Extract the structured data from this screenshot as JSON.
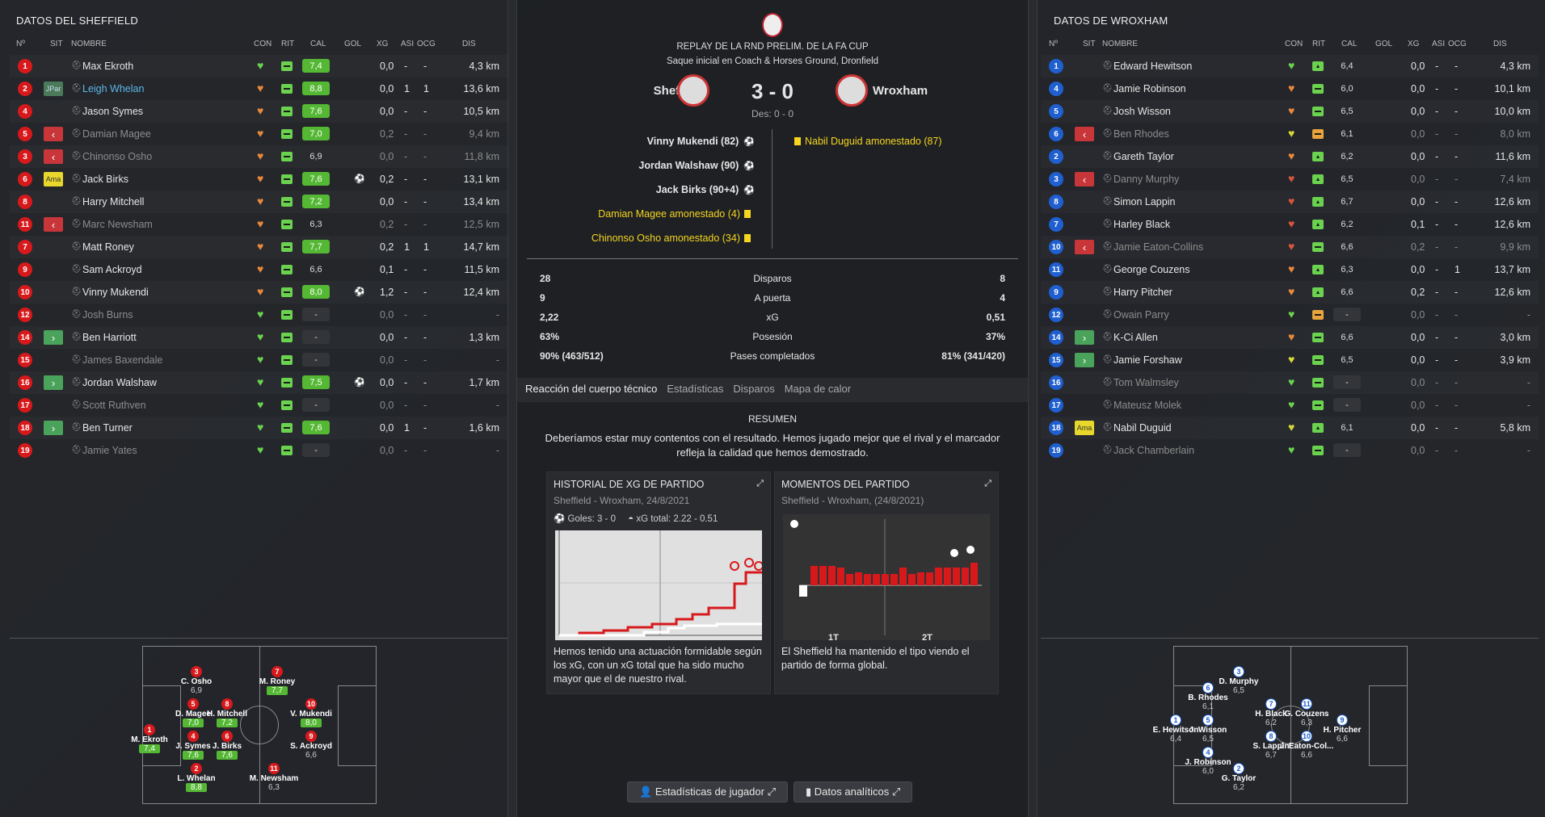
{
  "left": {
    "title": "DATOS DEL SHEFFIELD",
    "headers": {
      "num": "Nº",
      "sit": "SIT",
      "nombre": "NOMBRE",
      "con": "CON",
      "rit": "RIT",
      "cal": "CAL",
      "gol": "GOL",
      "xg": "XG",
      "asi": "ASI",
      "ocg": "OCG",
      "dis": "DIS"
    },
    "players": [
      {
        "num": "1",
        "sit": "",
        "name": "Max Ekroth",
        "con": "green",
        "rit": "g",
        "cal": "7,4",
        "calc": "good",
        "gol": "",
        "xg": "0,0",
        "asi": "-",
        "ocg": "-",
        "dis": "4,3 km",
        "style": ""
      },
      {
        "num": "2",
        "sit": "JPar",
        "name": "Leigh Whelan",
        "con": "orange",
        "rit": "g",
        "cal": "8,8",
        "calc": "good",
        "gol": "",
        "xg": "0,0",
        "asi": "1",
        "ocg": "1",
        "dis": "13,6 km",
        "style": "hl"
      },
      {
        "num": "4",
        "sit": "",
        "name": "Jason Symes",
        "con": "orange",
        "rit": "g",
        "cal": "7,6",
        "calc": "good",
        "gol": "",
        "xg": "0,0",
        "asi": "-",
        "ocg": "-",
        "dis": "10,5 km",
        "style": ""
      },
      {
        "num": "5",
        "sit": "out",
        "name": "Damian Magee",
        "con": "orange",
        "rit": "g",
        "cal": "7,0",
        "calc": "good",
        "gol": "",
        "xg": "0,2",
        "asi": "-",
        "ocg": "-",
        "dis": "9,4 km",
        "style": "dim"
      },
      {
        "num": "3",
        "sit": "out",
        "name": "Chinonso Osho",
        "con": "orange",
        "rit": "g",
        "cal": "6,9",
        "calc": "plain",
        "gol": "",
        "xg": "0,0",
        "asi": "-",
        "ocg": "-",
        "dis": "11,8 km",
        "style": "dim"
      },
      {
        "num": "6",
        "sit": "Ama",
        "name": "Jack Birks",
        "con": "orange",
        "rit": "g",
        "cal": "7,6",
        "calc": "good",
        "gol": "⚽",
        "xg": "0,2",
        "asi": "-",
        "ocg": "-",
        "dis": "13,1 km",
        "style": ""
      },
      {
        "num": "8",
        "sit": "",
        "name": "Harry Mitchell",
        "con": "orange",
        "rit": "g",
        "cal": "7,2",
        "calc": "good",
        "gol": "",
        "xg": "0,0",
        "asi": "-",
        "ocg": "-",
        "dis": "13,4 km",
        "style": ""
      },
      {
        "num": "11",
        "sit": "out",
        "name": "Marc Newsham",
        "con": "orange",
        "rit": "g",
        "cal": "6,3",
        "calc": "plain",
        "gol": "",
        "xg": "0,2",
        "asi": "-",
        "ocg": "-",
        "dis": "12,5 km",
        "style": "dim"
      },
      {
        "num": "7",
        "sit": "",
        "name": "Matt Roney",
        "con": "orange",
        "rit": "g",
        "cal": "7,7",
        "calc": "good",
        "gol": "",
        "xg": "0,2",
        "asi": "1",
        "ocg": "1",
        "dis": "14,7 km",
        "style": ""
      },
      {
        "num": "9",
        "sit": "",
        "name": "Sam Ackroyd",
        "con": "orange",
        "rit": "g",
        "cal": "6,6",
        "calc": "plain",
        "gol": "",
        "xg": "0,1",
        "asi": "-",
        "ocg": "-",
        "dis": "11,5 km",
        "style": ""
      },
      {
        "num": "10",
        "sit": "",
        "name": "Vinny Mukendi",
        "con": "orange",
        "rit": "g",
        "cal": "8,0",
        "calc": "good",
        "gol": "⚽",
        "xg": "1,2",
        "asi": "-",
        "ocg": "-",
        "dis": "12,4 km",
        "style": ""
      },
      {
        "num": "12",
        "sit": "",
        "name": "Josh Burns",
        "con": "green",
        "rit": "g",
        "cal": "-",
        "calc": "dash",
        "gol": "",
        "xg": "0,0",
        "asi": "-",
        "ocg": "-",
        "dis": "-",
        "style": "dim"
      },
      {
        "num": "14",
        "sit": "in",
        "name": "Ben Harriott",
        "con": "green",
        "rit": "g",
        "cal": "-",
        "calc": "dash",
        "gol": "",
        "xg": "0,0",
        "asi": "-",
        "ocg": "-",
        "dis": "1,3 km",
        "style": ""
      },
      {
        "num": "15",
        "sit": "",
        "name": "James Baxendale",
        "con": "green",
        "rit": "g",
        "cal": "-",
        "calc": "dash",
        "gol": "",
        "xg": "0,0",
        "asi": "-",
        "ocg": "-",
        "dis": "-",
        "style": "dim"
      },
      {
        "num": "16",
        "sit": "in",
        "name": "Jordan Walshaw",
        "con": "green",
        "rit": "g",
        "cal": "7,5",
        "calc": "good",
        "gol": "⚽",
        "xg": "0,0",
        "asi": "-",
        "ocg": "-",
        "dis": "1,7 km",
        "style": ""
      },
      {
        "num": "17",
        "sit": "",
        "name": "Scott Ruthven",
        "con": "green",
        "rit": "g",
        "cal": "-",
        "calc": "dash",
        "gol": "",
        "xg": "0,0",
        "asi": "-",
        "ocg": "-",
        "dis": "-",
        "style": "dim"
      },
      {
        "num": "18",
        "sit": "in",
        "name": "Ben Turner",
        "con": "green",
        "rit": "g",
        "cal": "7,6",
        "calc": "good",
        "gol": "",
        "xg": "0,0",
        "asi": "1",
        "ocg": "-",
        "dis": "1,6 km",
        "style": ""
      },
      {
        "num": "19",
        "sit": "",
        "name": "Jamie Yates",
        "con": "green",
        "rit": "g",
        "cal": "-",
        "calc": "dash",
        "gol": "",
        "xg": "0,0",
        "asi": "-",
        "ocg": "-",
        "dis": "-",
        "style": "dim"
      }
    ],
    "pitch": [
      {
        "n": "1",
        "name": "M. Ekroth",
        "r": "7,4",
        "g": true
      },
      {
        "n": "3",
        "name": "C. Osho",
        "r": "6,9",
        "g": false
      },
      {
        "n": "5",
        "name": "D. Magee",
        "r": "7,0",
        "g": true
      },
      {
        "n": "4",
        "name": "J. Symes",
        "r": "7,6",
        "g": true
      },
      {
        "n": "2",
        "name": "L. Whelan",
        "r": "8,8",
        "g": true
      },
      {
        "n": "8",
        "name": "H. Mitchell",
        "r": "7,2",
        "g": true
      },
      {
        "n": "6",
        "name": "J. Birks",
        "r": "7,6",
        "g": true
      },
      {
        "n": "7",
        "name": "M. Roney",
        "r": "7,7",
        "g": true
      },
      {
        "n": "11",
        "name": "M. Newsham",
        "r": "6,3",
        "g": false
      },
      {
        "n": "10",
        "name": "V. Mukendi",
        "r": "8,0",
        "g": true
      },
      {
        "n": "9",
        "name": "S. Ackroyd",
        "r": "6,6",
        "g": false
      }
    ]
  },
  "right": {
    "title": "DATOS DE WROXHAM",
    "headers": {
      "num": "Nº",
      "sit": "SIT",
      "nombre": "NOMBRE",
      "con": "CON",
      "rit": "RIT",
      "cal": "CAL",
      "gol": "GOL",
      "xg": "XG",
      "asi": "ASI",
      "ocg": "OCG",
      "dis": "DIS"
    },
    "players": [
      {
        "num": "1",
        "sit": "",
        "name": "Edward Hewitson",
        "con": "green",
        "rit": "up",
        "cal": "6,4",
        "calc": "plain",
        "gol": "",
        "xg": "0,0",
        "asi": "-",
        "ocg": "-",
        "dis": "4,3 km",
        "style": ""
      },
      {
        "num": "4",
        "sit": "",
        "name": "Jamie Robinson",
        "con": "orange",
        "rit": "g",
        "cal": "6,0",
        "calc": "plain",
        "gol": "",
        "xg": "0,0",
        "asi": "-",
        "ocg": "-",
        "dis": "10,1 km",
        "style": ""
      },
      {
        "num": "5",
        "sit": "",
        "name": "Josh Wisson",
        "con": "orange",
        "rit": "g",
        "cal": "6,5",
        "calc": "plain",
        "gol": "",
        "xg": "0,0",
        "asi": "-",
        "ocg": "-",
        "dis": "10,0 km",
        "style": ""
      },
      {
        "num": "6",
        "sit": "out",
        "name": "Ben Rhodes",
        "con": "yellow",
        "rit": "or",
        "cal": "6,1",
        "calc": "plain",
        "gol": "",
        "xg": "0,0",
        "asi": "-",
        "ocg": "-",
        "dis": "8,0 km",
        "style": "dim"
      },
      {
        "num": "2",
        "sit": "",
        "name": "Gareth Taylor",
        "con": "orange",
        "rit": "up",
        "cal": "6,2",
        "calc": "plain",
        "gol": "",
        "xg": "0,0",
        "asi": "-",
        "ocg": "-",
        "dis": "11,6 km",
        "style": ""
      },
      {
        "num": "3",
        "sit": "out",
        "name": "Danny Murphy",
        "con": "red",
        "rit": "up",
        "cal": "6,5",
        "calc": "plain",
        "gol": "",
        "xg": "0,0",
        "asi": "-",
        "ocg": "-",
        "dis": "7,4 km",
        "style": "dim"
      },
      {
        "num": "8",
        "sit": "",
        "name": "Simon Lappin",
        "con": "red",
        "rit": "up",
        "cal": "6,7",
        "calc": "plain",
        "gol": "",
        "xg": "0,0",
        "asi": "-",
        "ocg": "-",
        "dis": "12,6 km",
        "style": ""
      },
      {
        "num": "7",
        "sit": "",
        "name": "Harley Black",
        "con": "red",
        "rit": "up",
        "cal": "6,2",
        "calc": "plain",
        "gol": "",
        "xg": "0,1",
        "asi": "-",
        "ocg": "-",
        "dis": "12,6 km",
        "style": ""
      },
      {
        "num": "10",
        "sit": "out",
        "name": "Jamie Eaton-Collins",
        "con": "red",
        "rit": "g",
        "cal": "6,6",
        "calc": "plain",
        "gol": "",
        "xg": "0,2",
        "asi": "-",
        "ocg": "-",
        "dis": "9,9 km",
        "style": "dim"
      },
      {
        "num": "11",
        "sit": "",
        "name": "George Couzens",
        "con": "orange",
        "rit": "up",
        "cal": "6,3",
        "calc": "plain",
        "gol": "",
        "xg": "0,0",
        "asi": "-",
        "ocg": "1",
        "dis": "13,7 km",
        "style": ""
      },
      {
        "num": "9",
        "sit": "",
        "name": "Harry Pitcher",
        "con": "orange",
        "rit": "up",
        "cal": "6,6",
        "calc": "plain",
        "gol": "",
        "xg": "0,2",
        "asi": "-",
        "ocg": "-",
        "dis": "12,6 km",
        "style": ""
      },
      {
        "num": "12",
        "sit": "",
        "name": "Owain Parry",
        "con": "green",
        "rit": "or",
        "cal": "-",
        "calc": "dash",
        "gol": "",
        "xg": "0,0",
        "asi": "-",
        "ocg": "-",
        "dis": "-",
        "style": "dim"
      },
      {
        "num": "14",
        "sit": "in",
        "name": "K-Ci Allen",
        "con": "orange",
        "rit": "g",
        "cal": "6,6",
        "calc": "plain",
        "gol": "",
        "xg": "0,0",
        "asi": "-",
        "ocg": "-",
        "dis": "3,0 km",
        "style": ""
      },
      {
        "num": "15",
        "sit": "in",
        "name": "Jamie Forshaw",
        "con": "yellow",
        "rit": "g",
        "cal": "6,5",
        "calc": "plain",
        "gol": "",
        "xg": "0,0",
        "asi": "-",
        "ocg": "-",
        "dis": "3,9 km",
        "style": ""
      },
      {
        "num": "16",
        "sit": "",
        "name": "Tom Walmsley",
        "con": "green",
        "rit": "g",
        "cal": "-",
        "calc": "dash",
        "gol": "",
        "xg": "0,0",
        "asi": "-",
        "ocg": "-",
        "dis": "-",
        "style": "dim"
      },
      {
        "num": "17",
        "sit": "",
        "name": "Mateusz Molek",
        "con": "green",
        "rit": "g",
        "cal": "-",
        "calc": "dash",
        "gol": "",
        "xg": "0,0",
        "asi": "-",
        "ocg": "-",
        "dis": "-",
        "style": "dim"
      },
      {
        "num": "18",
        "sit": "Ama",
        "name": "Nabil Duguid",
        "con": "yellow",
        "rit": "up",
        "cal": "6,1",
        "calc": "plain",
        "gol": "",
        "xg": "0,0",
        "asi": "-",
        "ocg": "-",
        "dis": "5,8 km",
        "style": ""
      },
      {
        "num": "19",
        "sit": "",
        "name": "Jack Chamberlain",
        "con": "green",
        "rit": "g",
        "cal": "-",
        "calc": "dash",
        "gol": "",
        "xg": "0,0",
        "asi": "-",
        "ocg": "-",
        "dis": "-",
        "style": "dim"
      }
    ],
    "pitch": [
      {
        "n": "1",
        "name": "E. Hewitson",
        "r": "6,4"
      },
      {
        "n": "6",
        "name": "B. Rhodes",
        "r": "6,1"
      },
      {
        "n": "5",
        "name": "J. Wisson",
        "r": "6,5"
      },
      {
        "n": "4",
        "name": "J. Robinson",
        "r": "6,0"
      },
      {
        "n": "3",
        "name": "D. Murphy",
        "r": "6,5"
      },
      {
        "n": "2",
        "name": "G. Taylor",
        "r": "6,2"
      },
      {
        "n": "7",
        "name": "H. Black",
        "r": "6,2"
      },
      {
        "n": "8",
        "name": "S. Lappin",
        "r": "6,7"
      },
      {
        "n": "11",
        "name": "G. Couzens",
        "r": "6,3"
      },
      {
        "n": "10",
        "name": "J. Eaton-Col...",
        "r": "6,6"
      },
      {
        "n": "9",
        "name": "H. Pitcher",
        "r": "6,6"
      }
    ]
  },
  "match": {
    "competition": "REPLAY DE LA RND PRELIM. DE LA FA CUP",
    "kickoff": "Saque inicial en Coach & Horses Ground, Dronfield",
    "home": "Sheffield",
    "away": "Wroxham",
    "score": "3 - 0",
    "ht": "Des: 0 - 0",
    "home_events": [
      {
        "text": "Vinny Mukendi (82)",
        "type": "goal"
      },
      {
        "text": "Jordan Walshaw (90)",
        "type": "goal"
      },
      {
        "text": "Jack Birks (90+4)",
        "type": "goal"
      },
      {
        "text": "Damian Magee amonestado (4)",
        "type": "yellow"
      },
      {
        "text": "Chinonso Osho amonestado (34)",
        "type": "yellow"
      }
    ],
    "away_events": [
      {
        "text": "Nabil Duguid amonestado (87)",
        "type": "yellow"
      }
    ],
    "stats": [
      {
        "home": "28",
        "label": "Disparos",
        "away": "8"
      },
      {
        "home": "9",
        "label": "A puerta",
        "away": "4"
      },
      {
        "home": "2,22",
        "label": "xG",
        "away": "0,51"
      },
      {
        "home": "63%",
        "label": "Posesión",
        "away": "37%"
      },
      {
        "home": "90% (463/512)",
        "label": "Pases completados",
        "away": "81% (341/420)"
      }
    ],
    "tabs": [
      "Reacción del cuerpo técnico",
      "Estadísticas",
      "Disparos",
      "Mapa de calor"
    ],
    "resumen_title": "RESUMEN",
    "resumen_text": "Deberíamos estar muy contentos con el resultado. Hemos jugado mejor que el rival y el marcador refleja la calidad que hemos demostrado.",
    "xg_card": {
      "title": "HISTORIAL DE XG DE PARTIDO",
      "subtitle": "Sheffield - Wroxham, 24/8/2021",
      "goals": "Goles: 3 - 0",
      "xg_total": "xG total: 2.22 - 0.51",
      "desc": "Hemos tenido una actuación formidable según los xG, con un xG total que ha sido mucho mayor que el de nuestro rival."
    },
    "mom_card": {
      "title": "MOMENTOS DEL PARTIDO",
      "subtitle": "Sheffield - Wroxham, (24/8/2021)",
      "h1": "1T",
      "h2": "2T",
      "desc": "El Sheffield ha mantenido el tipo viendo el partido de forma global."
    },
    "btn_players": "Estadísticas de jugador",
    "btn_analytics": "Datos analíticos"
  }
}
